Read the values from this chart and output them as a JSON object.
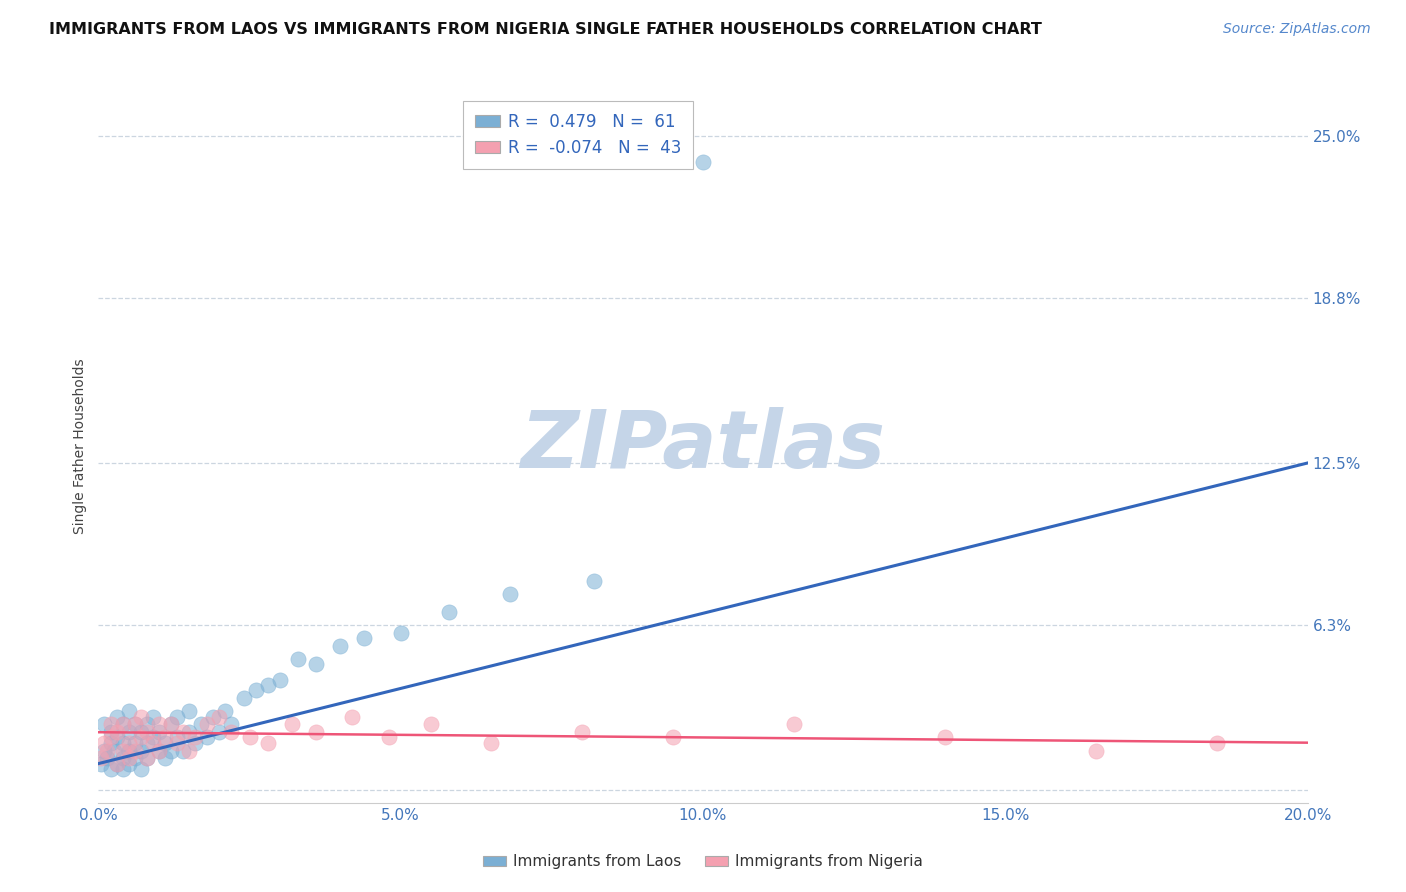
{
  "title": "IMMIGRANTS FROM LAOS VS IMMIGRANTS FROM NIGERIA SINGLE FATHER HOUSEHOLDS CORRELATION CHART",
  "source_text": "Source: ZipAtlas.com",
  "ylabel": "Single Father Households",
  "xlim": [
    0.0,
    0.2
  ],
  "ylim": [
    -0.005,
    0.268
  ],
  "yticks": [
    0.0,
    0.063,
    0.125,
    0.188,
    0.25
  ],
  "ytick_labels": [
    "",
    "6.3%",
    "12.5%",
    "18.8%",
    "25.0%"
  ],
  "xticks": [
    0.0,
    0.05,
    0.1,
    0.15,
    0.2
  ],
  "xtick_labels": [
    "0.0%",
    "5.0%",
    "10.0%",
    "15.0%",
    "20.0%"
  ],
  "laos_R": 0.479,
  "laos_N": 61,
  "nigeria_R": -0.074,
  "nigeria_N": 43,
  "laos_color": "#7BAFD4",
  "nigeria_color": "#F4A0B0",
  "laos_edge_color": "#5588BB",
  "nigeria_edge_color": "#DD6688",
  "trend_laos_color": "#3366BB",
  "trend_nigeria_color": "#EE5577",
  "background_color": "#FFFFFF",
  "watermark_text": "ZIPatlas",
  "watermark_color": "#C5D5E8",
  "laos_scatter_x": [
    0.0005,
    0.001,
    0.001,
    0.0015,
    0.002,
    0.002,
    0.002,
    0.0025,
    0.003,
    0.003,
    0.003,
    0.004,
    0.004,
    0.004,
    0.004,
    0.005,
    0.005,
    0.005,
    0.005,
    0.006,
    0.006,
    0.006,
    0.007,
    0.007,
    0.007,
    0.008,
    0.008,
    0.008,
    0.009,
    0.009,
    0.01,
    0.01,
    0.011,
    0.011,
    0.012,
    0.012,
    0.013,
    0.013,
    0.014,
    0.015,
    0.015,
    0.016,
    0.017,
    0.018,
    0.019,
    0.02,
    0.021,
    0.022,
    0.024,
    0.026,
    0.028,
    0.03,
    0.033,
    0.036,
    0.04,
    0.044,
    0.05,
    0.058,
    0.068,
    0.082,
    0.1
  ],
  "laos_scatter_y": [
    0.01,
    0.015,
    0.025,
    0.012,
    0.018,
    0.022,
    0.008,
    0.015,
    0.01,
    0.02,
    0.028,
    0.012,
    0.018,
    0.025,
    0.008,
    0.015,
    0.022,
    0.01,
    0.03,
    0.012,
    0.018,
    0.025,
    0.015,
    0.022,
    0.008,
    0.018,
    0.025,
    0.012,
    0.02,
    0.028,
    0.015,
    0.022,
    0.018,
    0.012,
    0.025,
    0.015,
    0.02,
    0.028,
    0.015,
    0.022,
    0.03,
    0.018,
    0.025,
    0.02,
    0.028,
    0.022,
    0.03,
    0.025,
    0.035,
    0.038,
    0.04,
    0.042,
    0.05,
    0.048,
    0.055,
    0.058,
    0.06,
    0.068,
    0.075,
    0.08,
    0.24
  ],
  "nigeria_scatter_x": [
    0.0005,
    0.001,
    0.0015,
    0.002,
    0.002,
    0.003,
    0.003,
    0.004,
    0.004,
    0.005,
    0.005,
    0.006,
    0.006,
    0.007,
    0.007,
    0.008,
    0.008,
    0.009,
    0.01,
    0.01,
    0.011,
    0.012,
    0.013,
    0.014,
    0.015,
    0.016,
    0.018,
    0.02,
    0.022,
    0.025,
    0.028,
    0.032,
    0.036,
    0.042,
    0.048,
    0.055,
    0.065,
    0.08,
    0.095,
    0.115,
    0.14,
    0.165,
    0.185
  ],
  "nigeria_scatter_y": [
    0.012,
    0.018,
    0.015,
    0.02,
    0.025,
    0.01,
    0.022,
    0.015,
    0.025,
    0.018,
    0.012,
    0.025,
    0.015,
    0.02,
    0.028,
    0.012,
    0.022,
    0.018,
    0.025,
    0.015,
    0.02,
    0.025,
    0.018,
    0.022,
    0.015,
    0.02,
    0.025,
    0.028,
    0.022,
    0.02,
    0.018,
    0.025,
    0.022,
    0.028,
    0.02,
    0.025,
    0.018,
    0.022,
    0.02,
    0.025,
    0.02,
    0.015,
    0.018
  ],
  "title_fontsize": 11.5,
  "axis_label_fontsize": 10,
  "tick_fontsize": 11,
  "legend_fontsize": 12,
  "source_fontsize": 10
}
